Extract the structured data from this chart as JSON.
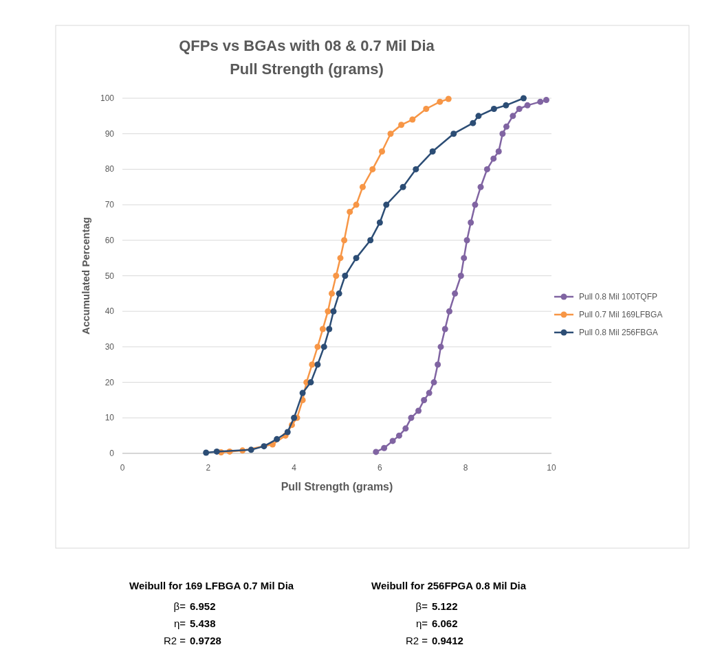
{
  "chart_data": {
    "type": "line",
    "title": "QFPs vs BGAs with  08 & 0.7 Mil  Dia",
    "subtitle": "Pull Strength (grams)",
    "xlabel": "Pull Strength (grams)",
    "ylabel": "Accumulated Percentag",
    "xlim": [
      0,
      10
    ],
    "xticks": [
      0,
      2,
      4,
      6,
      8,
      10
    ],
    "ylim": [
      0,
      100
    ],
    "yticks": [
      0,
      10,
      20,
      30,
      40,
      50,
      60,
      70,
      80,
      90,
      100
    ],
    "grid": "y",
    "legend": "right",
    "marker": "circle",
    "line_style": "solid",
    "series": [
      {
        "name": "Pull 0.8 Mil 100TQFP",
        "color": "#8064a2",
        "x": [
          5.91,
          6.1,
          6.3,
          6.45,
          6.6,
          6.73,
          6.9,
          7.03,
          7.15,
          7.26,
          7.35,
          7.42,
          7.52,
          7.62,
          7.75,
          7.89,
          7.96,
          8.03,
          8.12,
          8.22,
          8.35,
          8.5,
          8.65,
          8.77,
          8.86,
          8.95,
          9.1,
          9.25,
          9.44,
          9.74,
          9.88
        ],
        "values": [
          0.4,
          1.5,
          3.5,
          5,
          7,
          10,
          12,
          15,
          17,
          20,
          25,
          30,
          35,
          40,
          45,
          50,
          55,
          60,
          65,
          70,
          75,
          80,
          83,
          85,
          90,
          92,
          95,
          97,
          98,
          99,
          99.5
        ]
      },
      {
        "name": "Pull 0.7 Mil 169LFBGA",
        "color": "#f79646",
        "x": [
          2.3,
          2.5,
          2.8,
          3.5,
          3.8,
          3.95,
          4.07,
          4.2,
          4.29,
          4.42,
          4.55,
          4.67,
          4.79,
          4.88,
          4.98,
          5.08,
          5.17,
          5.3,
          5.45,
          5.6,
          5.83,
          6.05,
          6.25,
          6.5,
          6.76,
          7.08,
          7.4,
          7.6
        ],
        "values": [
          0.3,
          0.5,
          0.8,
          2.5,
          5,
          8,
          10,
          15,
          20,
          25,
          30,
          35,
          40,
          45,
          50,
          55,
          60,
          68,
          70,
          75,
          80,
          85,
          90,
          92.5,
          94,
          97,
          99,
          99.8
        ]
      },
      {
        "name": "Pull 0.8 Mil 256FBGA",
        "color": "#2c4d75",
        "x": [
          1.95,
          2.2,
          3.0,
          3.3,
          3.6,
          3.85,
          4.0,
          4.2,
          4.39,
          4.55,
          4.7,
          4.82,
          4.92,
          5.05,
          5.19,
          5.45,
          5.78,
          6.0,
          6.15,
          6.54,
          6.84,
          7.23,
          7.72,
          8.17,
          8.3,
          8.66,
          8.94,
          9.35
        ],
        "values": [
          0.2,
          0.5,
          1,
          2,
          4,
          6,
          10,
          17,
          20,
          25,
          30,
          35,
          40,
          45,
          50,
          55,
          60,
          65,
          70,
          75,
          80,
          85,
          90,
          93,
          95,
          97,
          98,
          100
        ]
      }
    ],
    "annotations": [
      "Weibull for 169 LFBGA 0.7 Mil Dia",
      "β=",
      "6.952",
      "η=",
      "5.438",
      "R2 =",
      "0.9728",
      "Weibull for 256FPGA 0.8 Mil Dia",
      "β=",
      "5.122",
      "η=",
      "6.062",
      "R2 =",
      "0.9412"
    ]
  }
}
